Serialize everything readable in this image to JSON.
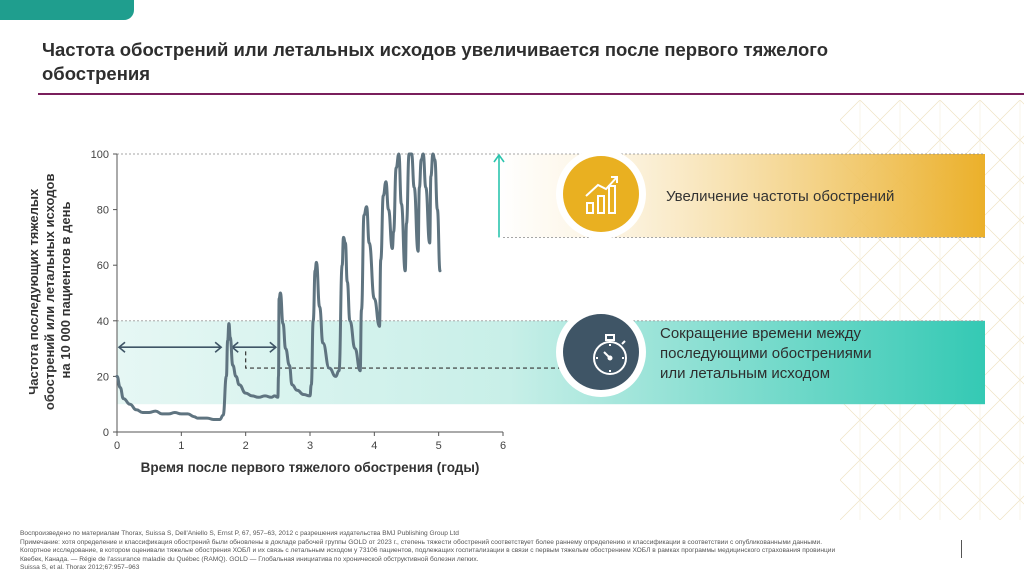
{
  "page": {
    "title": "Частота обострений или летальных исходов увеличивается после первого тяжелого обострения",
    "footer_lines": [
      "Воспроизведено по материалам Thorax, Suissa S, Dell'Aniello S, Ernst P, 67, 957–63, 2012 с разрешения издательства BMJ Publishing Group Ltd",
      "Примечание: хотя определение и классификация обострений были обновлены в докладе рабочей группы GOLD от 2023 г., степень тяжести обострений соответствует более раннему определению и классификации в соответствии с опубликованными данными.",
      "Когортное исследование, в котором оценивали тяжелые обострения ХОБЛ и их связь с летальным исходом у 73106 пациентов, подлежащих госпитализации в связи с первым тяжелым обострением  ХОБЛ в рамках программы медицинского страхования провинции",
      "Квебек, Канада. — Régie de l'assurance maladie du Québec (RAMQ). GOLD — Глобальная инициатива по хронической обструктивной болезни легких.",
      "Suissa S, et al. Thorax 2012;67:957–963"
    ],
    "colors": {
      "accent_teal": "#1f9e8e",
      "title_rule": "#7a1f5c",
      "gold": "#e8b020",
      "slate": "#3f5566",
      "curve": "#5f7480"
    },
    "icons": [
      "rising-bar-chart-icon",
      "stopwatch-icon"
    ]
  },
  "chart_data": {
    "type": "line",
    "title": "",
    "xlabel": "Время после первого тяжелого обострения (годы)",
    "ylabel_lines": [
      "Частота последующих тяжелых",
      "обострений или летальных исходов",
      "на 10 000 пациентов в день"
    ],
    "xlim": [
      0,
      6
    ],
    "ylim": [
      0,
      100
    ],
    "x_ticks": [
      0,
      1,
      2,
      3,
      4,
      5,
      6
    ],
    "y_ticks": [
      0,
      20,
      40,
      60,
      80,
      100
    ],
    "x_tick_labels": [
      "0",
      "1",
      "2",
      "3",
      "4",
      "5",
      "6"
    ],
    "y_tick_labels": [
      "0",
      "20",
      "40",
      "60",
      "80",
      "100"
    ],
    "series": [
      {
        "x": [
          0,
          0.05,
          0.1,
          0.2,
          0.3,
          0.4,
          0.5,
          0.6,
          0.7,
          0.8,
          0.9,
          1.0,
          1.1,
          1.2,
          1.25,
          1.3,
          1.4,
          1.5,
          1.6,
          1.65,
          1.7,
          1.72,
          1.74,
          1.76,
          1.8,
          1.85,
          1.9,
          2.0,
          2.1,
          2.2,
          2.3,
          2.4,
          2.45,
          2.5,
          2.51,
          2.52,
          2.54,
          2.58,
          2.62,
          2.68,
          2.72,
          2.8,
          2.9,
          3.0,
          3.02,
          3.05,
          3.08,
          3.1,
          3.15,
          3.2,
          3.3,
          3.4,
          3.45,
          3.5,
          3.52,
          3.55,
          3.58,
          3.62,
          3.7,
          3.78,
          3.8,
          3.84,
          3.88,
          3.92,
          4.0,
          4.08,
          4.1,
          4.14,
          4.18,
          4.22,
          4.28,
          4.3,
          4.34,
          4.38,
          4.42,
          4.48,
          4.5,
          4.54,
          4.58,
          4.62,
          4.68,
          4.7,
          4.73,
          4.76,
          4.8,
          4.86,
          4.88,
          4.91,
          4.94,
          4.98,
          5.02
        ],
        "y": [
          20,
          16,
          12,
          10,
          8,
          7,
          7,
          7.5,
          6.5,
          6.5,
          7,
          6.5,
          6.5,
          5.5,
          5,
          5,
          5,
          4.5,
          4.5,
          6,
          20,
          33,
          39,
          34,
          24,
          20,
          17,
          14,
          13,
          12.5,
          13,
          12.5,
          13,
          12.5,
          20,
          48,
          50,
          39,
          30,
          24,
          17,
          15,
          13.5,
          13,
          17,
          40,
          58,
          61,
          45,
          32,
          23,
          20,
          22,
          60,
          70,
          68,
          54,
          40,
          30,
          22,
          44,
          78,
          81,
          68,
          48,
          38,
          62,
          85,
          90,
          80,
          66,
          72,
          95,
          100,
          82,
          58,
          75,
          100,
          100,
          88,
          65,
          88,
          98,
          100,
          88,
          68,
          92,
          100,
          98,
          80,
          58
        ]
      }
    ],
    "callouts": [
      {
        "text": "Увеличение частоты обострений",
        "icon": "rising-bar-chart-icon"
      },
      {
        "text_lines": [
          "Сокращение времени между",
          "последующими обострениями",
          "или летальным исходом"
        ],
        "icon": "stopwatch-icon"
      }
    ],
    "reference_levels": {
      "upper": [
        70,
        100
      ],
      "lower_band_top": 40,
      "dashed_level": 23
    },
    "interval_arrows": [
      [
        0,
        1.65
      ],
      [
        1.76,
        2.5
      ]
    ],
    "grid": false
  }
}
